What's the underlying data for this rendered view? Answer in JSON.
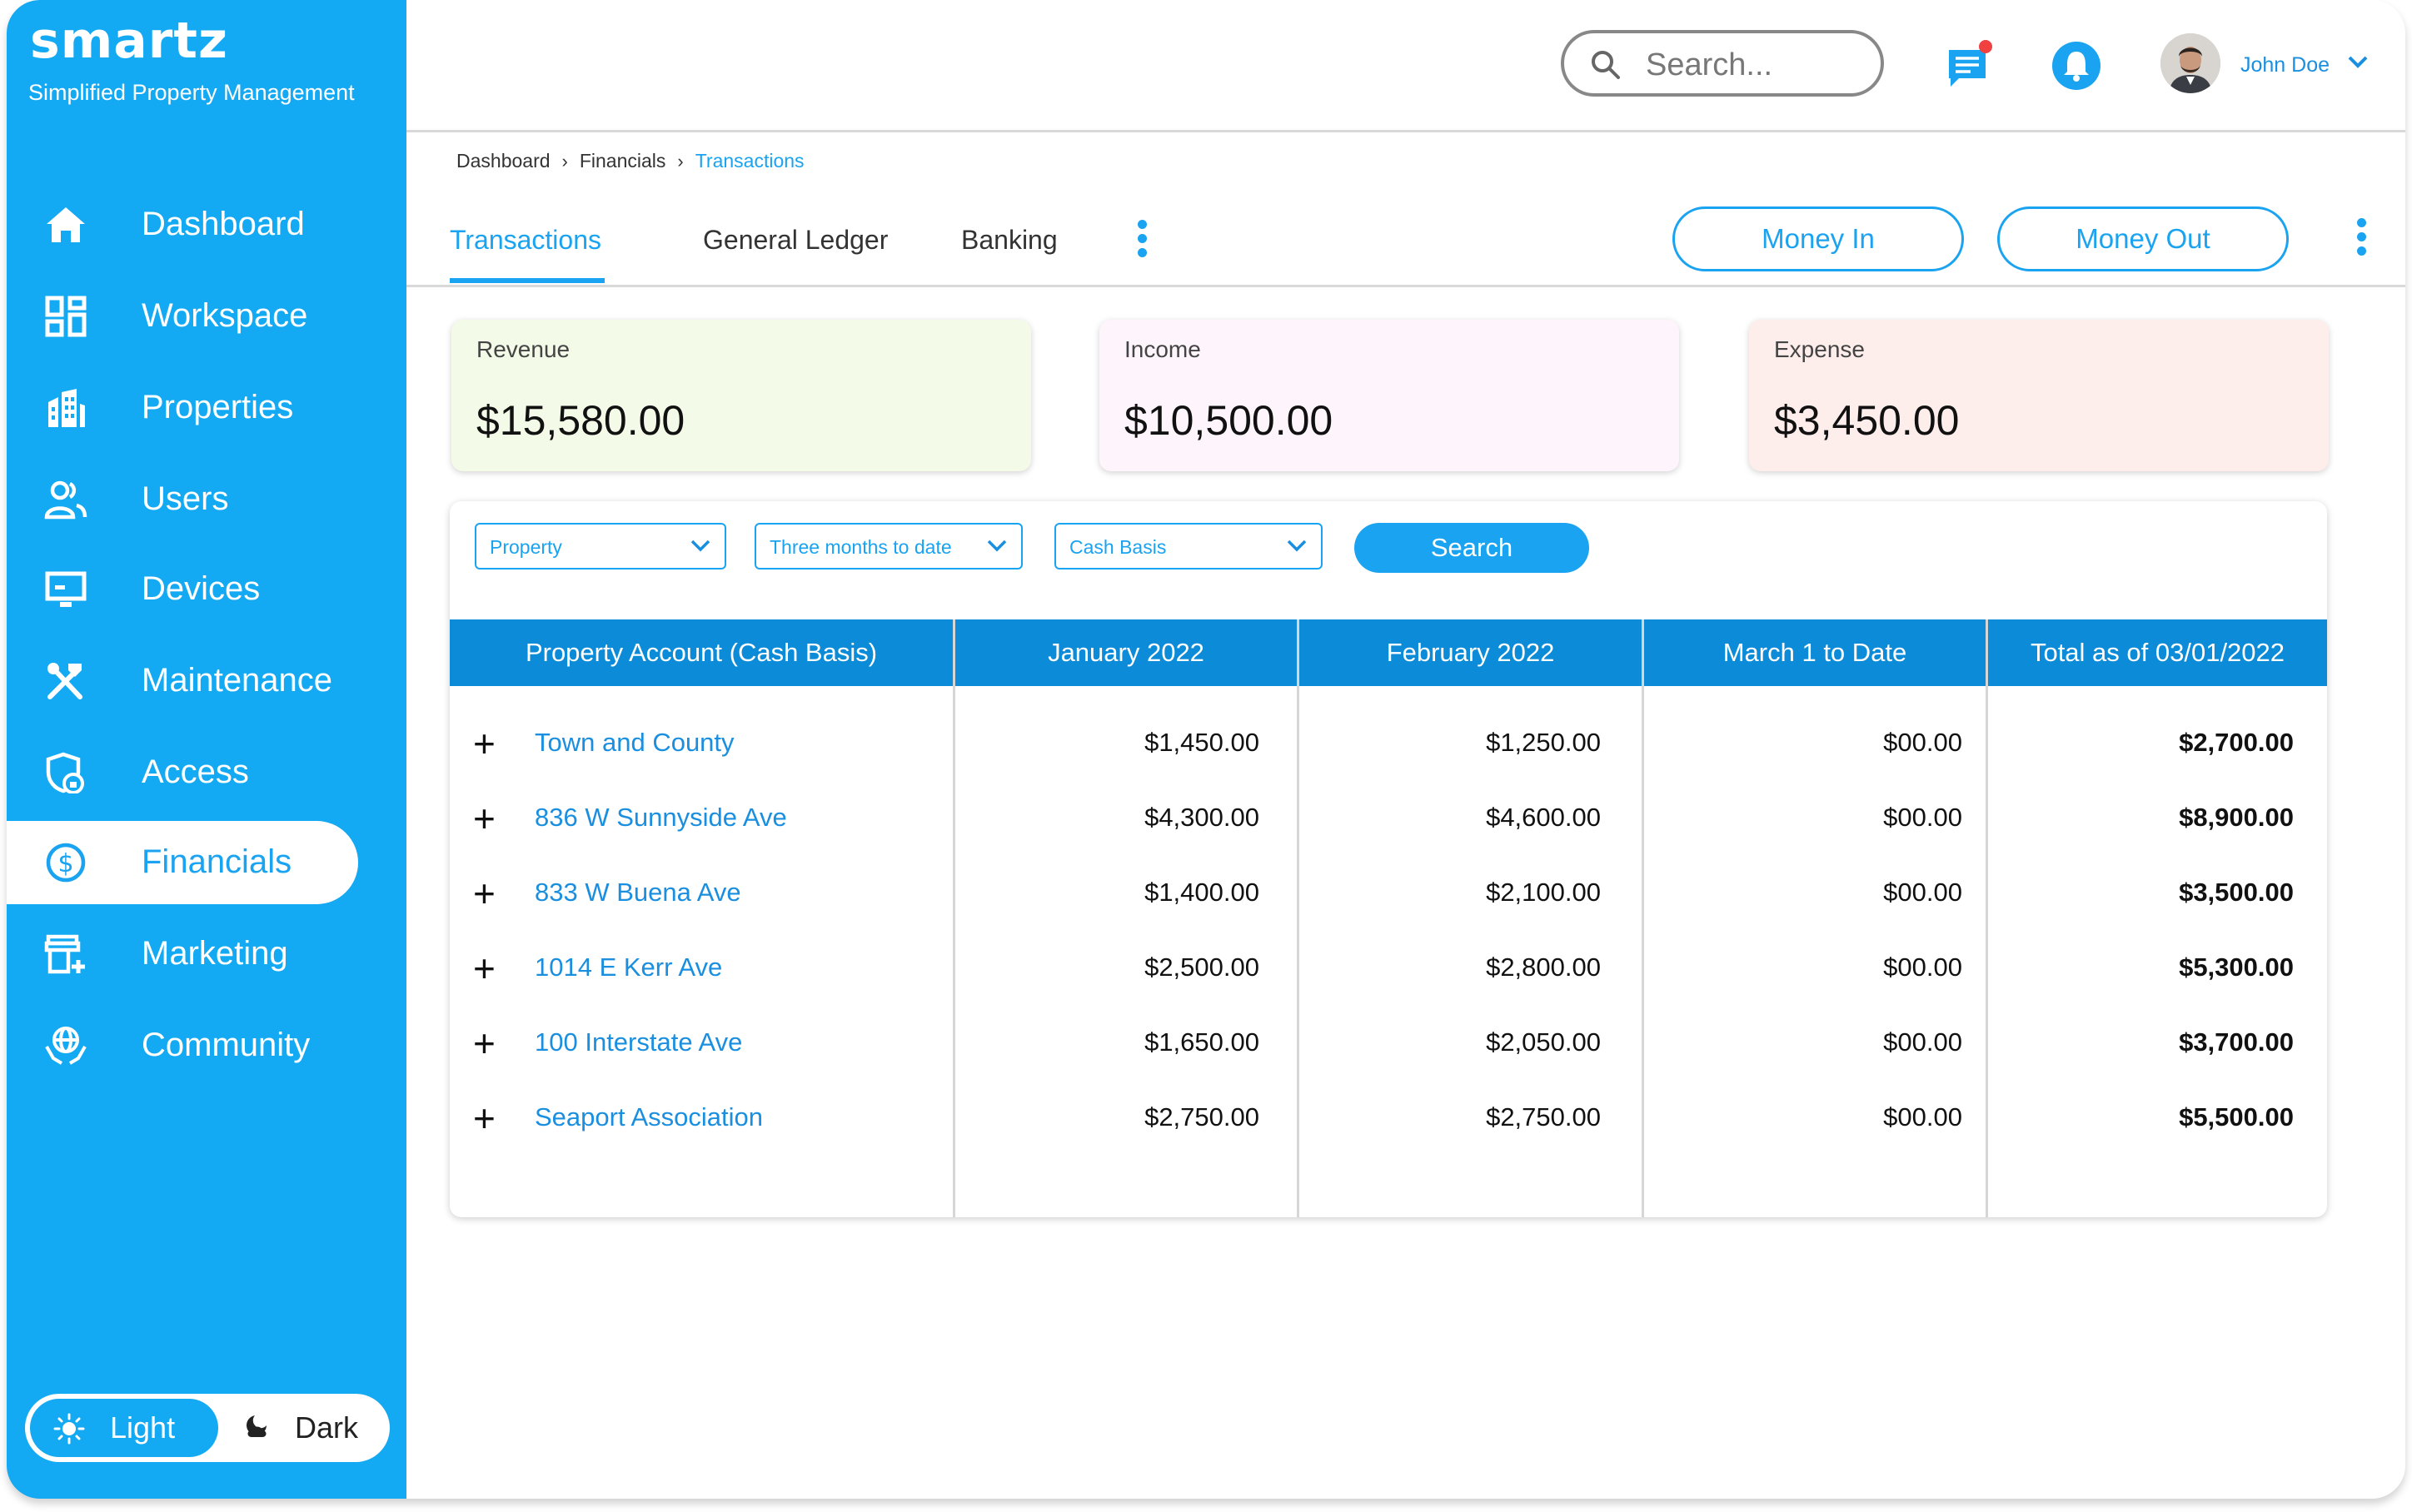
{
  "brand": {
    "logo": "smartz",
    "tagline": "Simplified Property Management"
  },
  "sidebar": {
    "items": [
      {
        "label": "Dashboard",
        "icon": "home-icon"
      },
      {
        "label": "Workspace",
        "icon": "grid-icon"
      },
      {
        "label": "Properties",
        "icon": "building-icon"
      },
      {
        "label": "Users",
        "icon": "users-icon"
      },
      {
        "label": "Devices",
        "icon": "monitor-icon"
      },
      {
        "label": "Maintenance",
        "icon": "tools-icon"
      },
      {
        "label": "Access",
        "icon": "shield-lock-icon"
      },
      {
        "label": "Financials",
        "icon": "dollar-circle-icon",
        "active": true
      },
      {
        "label": "Marketing",
        "icon": "storefront-icon"
      },
      {
        "label": "Community",
        "icon": "globe-hands-icon"
      }
    ],
    "theme": {
      "light_label": "Light",
      "dark_label": "Dark",
      "selected": "Light"
    }
  },
  "header": {
    "search_placeholder": "Search...",
    "user_name": "John Doe"
  },
  "breadcrumb": [
    "Dashboard",
    "Financials",
    "Transactions"
  ],
  "tabs": [
    {
      "label": "Transactions",
      "active": true
    },
    {
      "label": "General Ledger"
    },
    {
      "label": "Banking"
    }
  ],
  "actions": {
    "money_in": "Money In",
    "money_out": "Money Out"
  },
  "summary": [
    {
      "label": "Revenue",
      "value": "$15,580.00",
      "bg": "#f3fbe8"
    },
    {
      "label": "Income",
      "value": "$10,500.00",
      "bg": "#fdf5fb"
    },
    {
      "label": "Expense",
      "value": "$3,450.00",
      "bg": "#fdeeec"
    }
  ],
  "filters": {
    "property": "Property",
    "period": "Three months to date",
    "basis": "Cash Basis",
    "search_button": "Search"
  },
  "table": {
    "columns": [
      "Property Account (Cash Basis)",
      "January 2022",
      "February 2022",
      "March 1 to Date",
      "Total as of 03/01/2022"
    ],
    "rows": [
      {
        "name": "Town and County",
        "jan": "$1,450.00",
        "feb": "$1,250.00",
        "mar": "$00.00",
        "total": "$2,700.00"
      },
      {
        "name": "836 W Sunnyside Ave",
        "jan": "$4,300.00",
        "feb": "$4,600.00",
        "mar": "$00.00",
        "total": "$8,900.00"
      },
      {
        "name": "833 W Buena Ave",
        "jan": "$1,400.00",
        "feb": "$2,100.00",
        "mar": "$00.00",
        "total": "$3,500.00"
      },
      {
        "name": "1014 E Kerr Ave",
        "jan": "$2,500.00",
        "feb": "$2,800.00",
        "mar": "$00.00",
        "total": "$5,300.00"
      },
      {
        "name": "100 Interstate Ave",
        "jan": "$1,650.00",
        "feb": "$2,050.00",
        "mar": "$00.00",
        "total": "$3,700.00"
      },
      {
        "name": "Seaport Association",
        "jan": "$2,750.00",
        "feb": "$2,750.00",
        "mar": "$00.00",
        "total": "$5,500.00"
      }
    ]
  },
  "colors": {
    "primary": "#13a9f3",
    "table_header": "#0b8bd8",
    "link": "#1a8fe0"
  }
}
